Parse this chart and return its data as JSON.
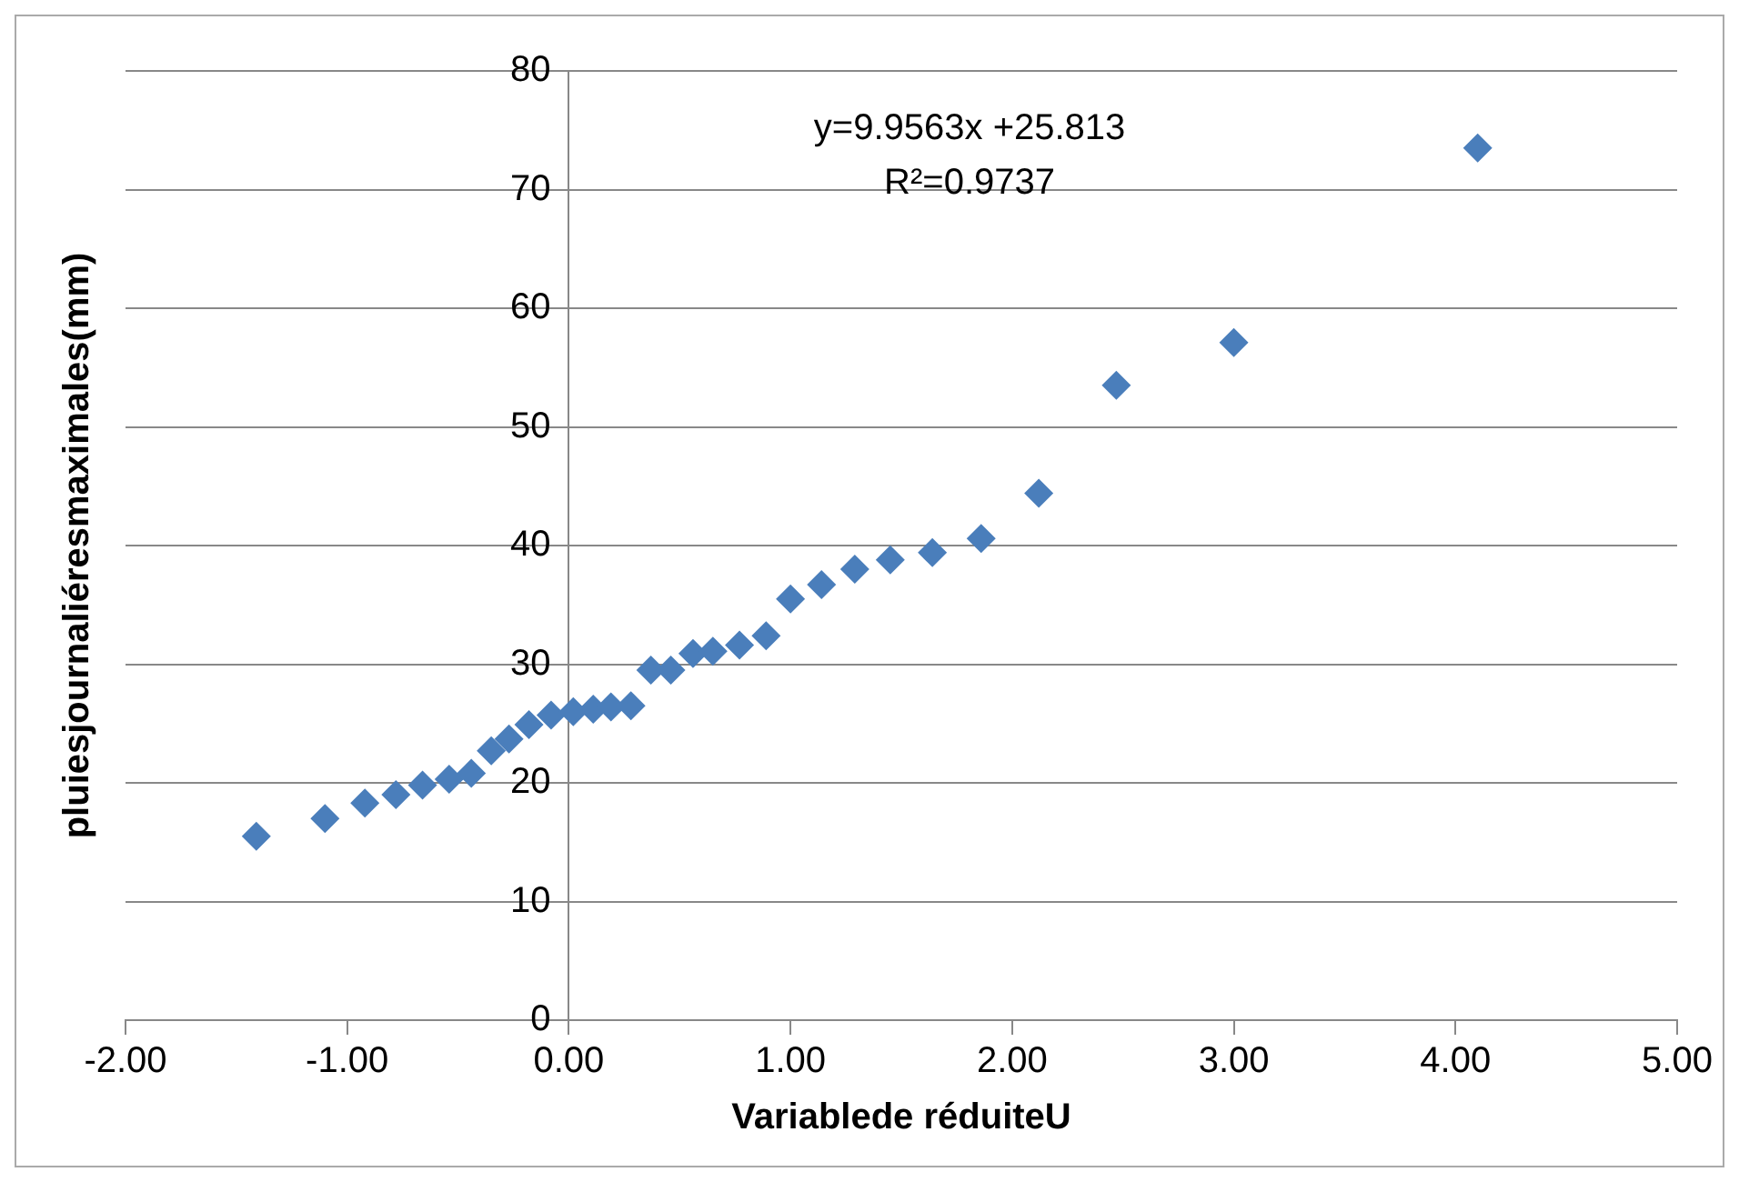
{
  "chart_data": {
    "type": "scatter",
    "xlabel": "Variablede réduiteU",
    "ylabel": "pluiesjournaliéresmaximales(mm)",
    "annotations": [
      "y=9.9563x +25.813",
      "R²=0.9737"
    ],
    "series": [
      {
        "color": "#4a7ebb",
        "x": [
          -1.41,
          -1.1,
          -0.92,
          -0.78,
          -0.66,
          -0.54,
          -0.44,
          -0.35,
          -0.27,
          -0.18,
          -0.08,
          0.02,
          0.11,
          0.19,
          0.28,
          0.37,
          0.46,
          0.56,
          0.65,
          0.77,
          0.89,
          1.0,
          1.14,
          1.29,
          1.45,
          1.64,
          1.86,
          2.12,
          2.47,
          3.0,
          4.1
        ],
        "values": [
          15.5,
          17.0,
          18.3,
          19.0,
          19.8,
          20.3,
          20.8,
          22.7,
          23.7,
          24.9,
          25.7,
          26.0,
          26.2,
          26.4,
          26.5,
          29.5,
          29.5,
          30.9,
          31.1,
          31.6,
          32.4,
          35.5,
          36.7,
          38.0,
          38.8,
          39.4,
          40.6,
          44.4,
          53.5,
          57.1,
          73.5
        ]
      }
    ],
    "xlim": [
      -2,
      5
    ],
    "xticks": [
      {
        "value": -2,
        "label": "-2.00"
      },
      {
        "value": -1,
        "label": "-1.00"
      },
      {
        "value": 0,
        "label": "0.00"
      },
      {
        "value": 1,
        "label": "1.00"
      },
      {
        "value": 2,
        "label": "2.00"
      },
      {
        "value": 3,
        "label": "3.00"
      },
      {
        "value": 4,
        "label": "4.00"
      },
      {
        "value": 5,
        "label": "5.00"
      }
    ],
    "ylim": [
      0,
      80
    ],
    "yticks": [
      0,
      10,
      20,
      30,
      40,
      50,
      60,
      70,
      80
    ],
    "grid": "y",
    "legend": false,
    "marker": "diamond"
  }
}
